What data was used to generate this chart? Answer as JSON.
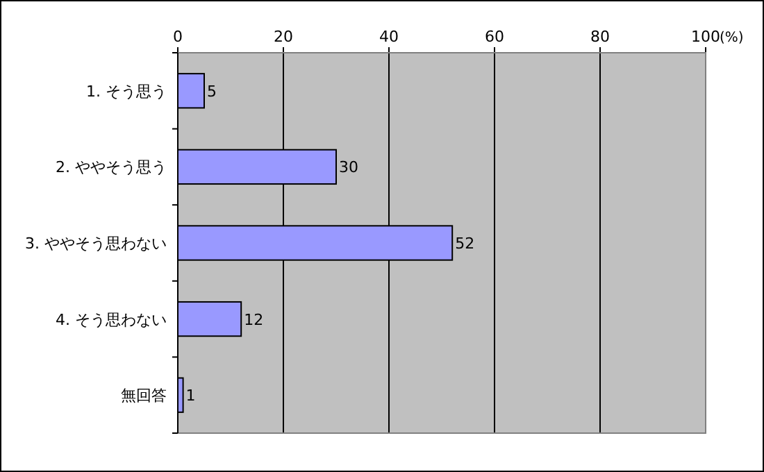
{
  "chart_data": {
    "type": "bar",
    "orientation": "horizontal",
    "xlabel": "(%)",
    "categories": [
      "1. そう思う",
      "2. ややそう思う",
      "3. ややそう思わない",
      "4. そう思わない",
      "無回答"
    ],
    "values": [
      5,
      30,
      52,
      12,
      1
    ],
    "color": "#9999ff",
    "xlim": [
      0,
      100
    ],
    "xticks": [
      0,
      20,
      40,
      60,
      80,
      100
    ],
    "grid": "x",
    "data_labels": true
  }
}
